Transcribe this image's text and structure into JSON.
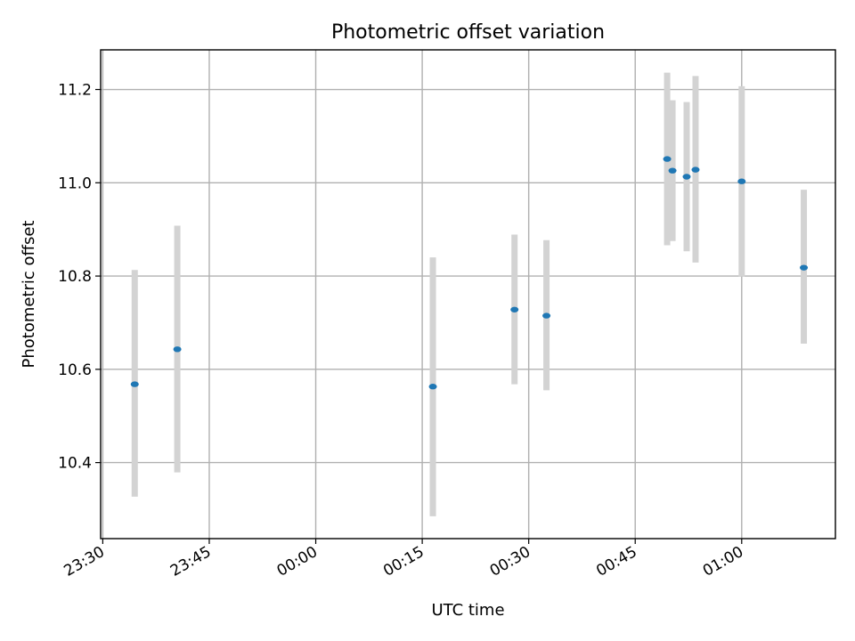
{
  "chart_data": {
    "type": "scatter",
    "title": "Photometric offset variation",
    "xlabel": "UTC time",
    "ylabel": "Photometric offset",
    "grid": true,
    "x_unit": "minutes",
    "x_tick_values": [
      -30,
      -15,
      0,
      15,
      30,
      45,
      60
    ],
    "x_tick_labels": [
      "23:30",
      "23:45",
      "00:00",
      "00:15",
      "00:30",
      "00:45",
      "01:00"
    ],
    "xlim": [
      -30.3,
      73.2
    ],
    "y_ticks": [
      10.4,
      10.6,
      10.8,
      11.0,
      11.2
    ],
    "y_tick_labels": [
      "10.4",
      "10.6",
      "10.8",
      "11.0",
      "11.2"
    ],
    "ylim": [
      10.237,
      11.285
    ],
    "colors": {
      "point": "#1f77b4",
      "errorbar": "#d3d3d3"
    },
    "points": [
      {
        "time": "23:34:30",
        "x": -25.5,
        "y": 10.568,
        "err_low": 10.327,
        "err_high": 10.813
      },
      {
        "time": "23:40:30",
        "x": -19.5,
        "y": 10.643,
        "err_low": 10.379,
        "err_high": 10.908
      },
      {
        "time": "00:16:30",
        "x": 16.5,
        "y": 10.563,
        "err_low": 10.285,
        "err_high": 10.84
      },
      {
        "time": "00:28:00",
        "x": 28.0,
        "y": 10.728,
        "err_low": 10.568,
        "err_high": 10.889
      },
      {
        "time": "00:32:30",
        "x": 32.5,
        "y": 10.715,
        "err_low": 10.555,
        "err_high": 10.877
      },
      {
        "time": "00:49:30",
        "x": 49.5,
        "y": 11.051,
        "err_low": 10.866,
        "err_high": 11.236
      },
      {
        "time": "00:50:15",
        "x": 50.25,
        "y": 11.026,
        "err_low": 10.875,
        "err_high": 11.177
      },
      {
        "time": "00:52:15",
        "x": 52.25,
        "y": 11.013,
        "err_low": 10.853,
        "err_high": 11.173
      },
      {
        "time": "00:53:30",
        "x": 53.5,
        "y": 11.028,
        "err_low": 10.829,
        "err_high": 11.229
      },
      {
        "time": "01:00:00",
        "x": 60.0,
        "y": 11.003,
        "err_low": 10.799,
        "err_high": 11.207
      },
      {
        "time": "01:08:45",
        "x": 68.75,
        "y": 10.818,
        "err_low": 10.655,
        "err_high": 10.985
      }
    ]
  }
}
